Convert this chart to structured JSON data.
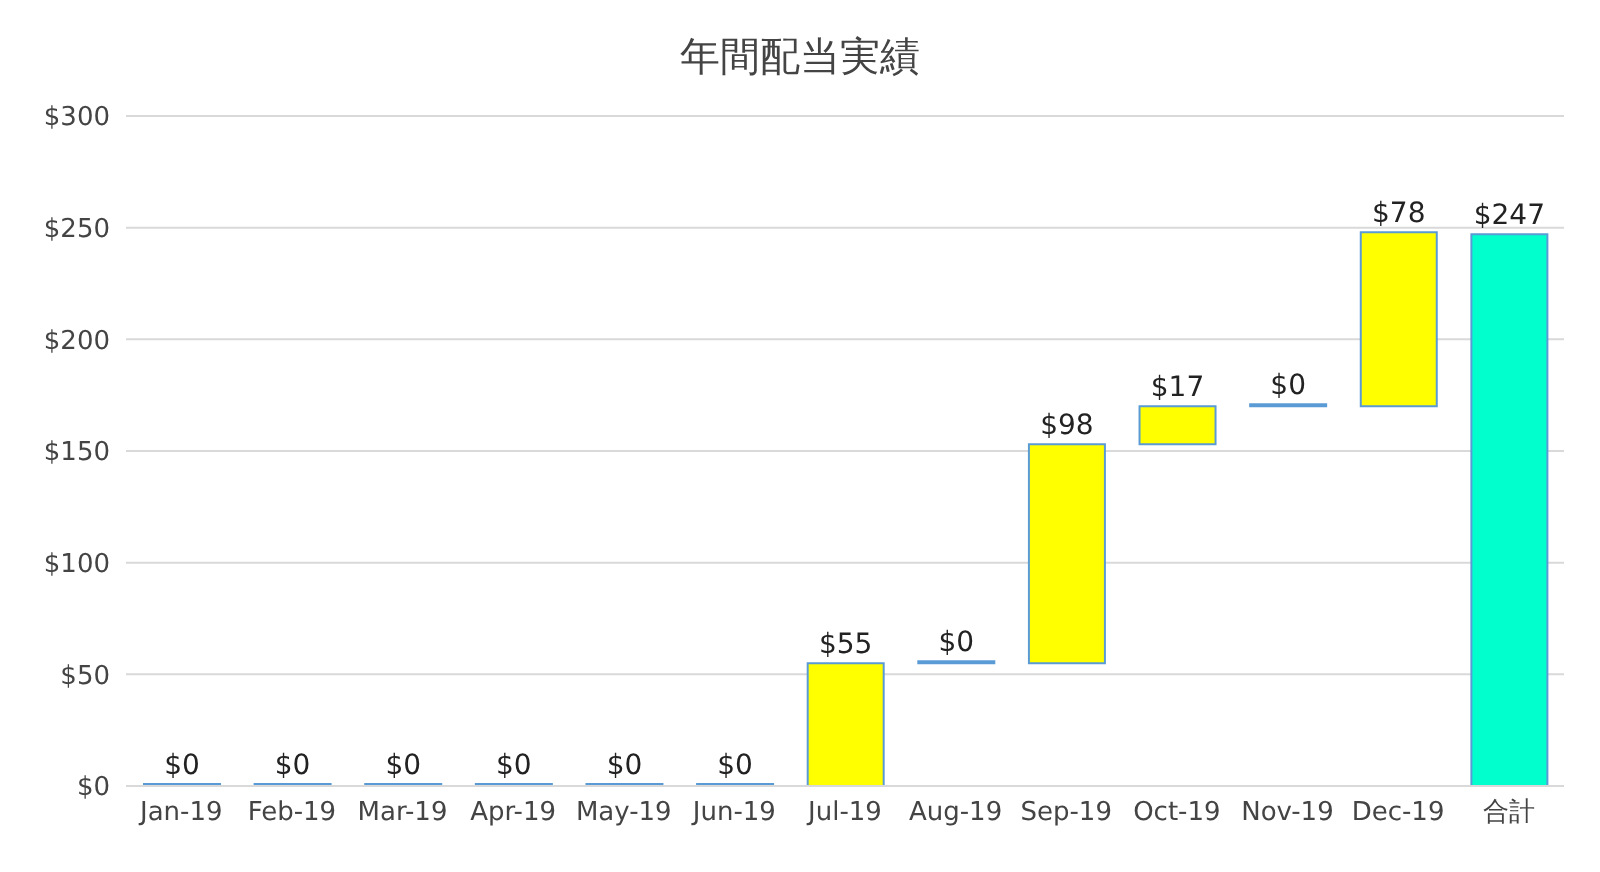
{
  "chart_data": {
    "type": "bar",
    "title": "年間配当実績",
    "categories": [
      "Jan-19",
      "Feb-19",
      "Mar-19",
      "Apr-19",
      "May-19",
      "Jun-19",
      "Jul-19",
      "Aug-19",
      "Sep-19",
      "Oct-19",
      "Nov-19",
      "Dec-19",
      "合計"
    ],
    "values": [
      0,
      0,
      0,
      0,
      0,
      0,
      55,
      0,
      98,
      17,
      0,
      78,
      247
    ],
    "base": [
      0,
      0,
      0,
      0,
      0,
      0,
      0,
      55,
      55,
      153,
      170,
      170,
      0
    ],
    "value_labels": [
      "$0",
      "$0",
      "$0",
      "$0",
      "$0",
      "$0",
      "$55",
      "$0",
      "$98",
      "$17",
      "$0",
      "$78",
      "$247"
    ],
    "colors": [
      "#ffff00",
      "#ffff00",
      "#ffff00",
      "#ffff00",
      "#ffff00",
      "#ffff00",
      "#ffff00",
      "#ffff00",
      "#ffff00",
      "#ffff00",
      "#ffff00",
      "#ffff00",
      "#00ffcc"
    ],
    "ylim": [
      0,
      300
    ],
    "yticks": [
      {
        "value": 0,
        "label": "$0"
      },
      {
        "value": 50,
        "label": "$50"
      },
      {
        "value": 100,
        "label": "$100"
      },
      {
        "value": 150,
        "label": "$150"
      },
      {
        "value": 200,
        "label": "$200"
      },
      {
        "value": 250,
        "label": "$250"
      },
      {
        "value": 300,
        "label": "$300"
      }
    ],
    "grid": "y"
  }
}
